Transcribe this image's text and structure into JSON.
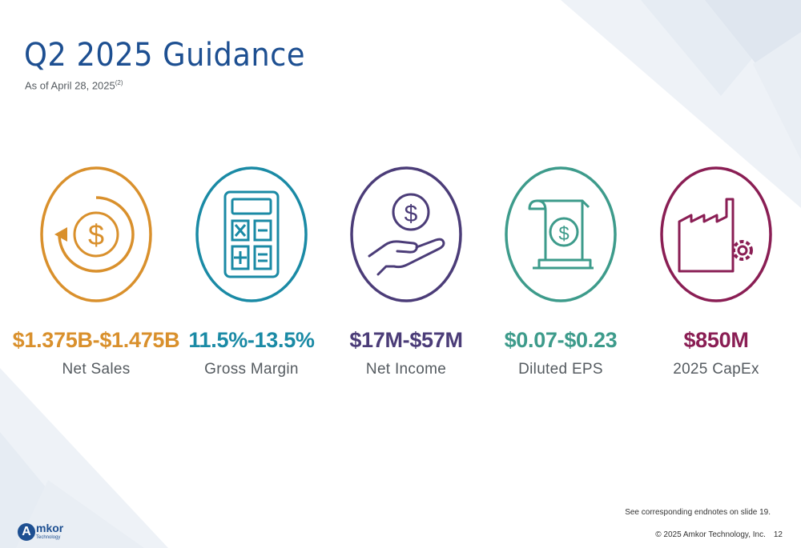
{
  "title": "Q2 2025 Guidance",
  "subtitle": "As of April 28, 2025",
  "subtitle_note": "(2)",
  "metrics": [
    {
      "value": "$1.375B-$1.475B",
      "label": "Net Sales",
      "icon": "dollar-cycle-icon",
      "color": "#d9902c"
    },
    {
      "value": "11.5%-13.5%",
      "label": "Gross Margin",
      "icon": "calculator-icon",
      "color": "#1a8aa5"
    },
    {
      "value": "$17M-$57M",
      "label": "Net Income",
      "icon": "hand-coin-icon",
      "color": "#4b3c78"
    },
    {
      "value": "$0.07-$0.23",
      "label": "Diluted EPS",
      "icon": "receipt-dollar-icon",
      "color": "#3d9b8b"
    },
    {
      "value": "$850M",
      "label": "2025 CapEx",
      "icon": "factory-gear-icon",
      "color": "#8a1e54"
    }
  ],
  "endnote": "See corresponding endnotes on slide 19.",
  "copyright": "© 2025 Amkor Technology, Inc.",
  "slide_number": "12",
  "logo": {
    "mark": "A",
    "brand": "mkor",
    "sub": "Technology"
  }
}
